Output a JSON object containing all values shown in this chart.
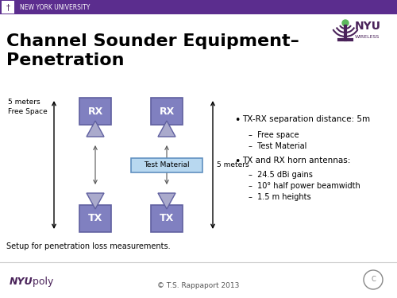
{
  "title_line1": "Channel Sounder Equipment–",
  "title_line2": "Penetration",
  "header_bg": "#5b2d8e",
  "header_text": "NEW YORK UNIVERSITY",
  "slide_bg": "#ffffff",
  "box_color": "#8080c0",
  "box_edge_color": "#6060a0",
  "box_text_color": "white",
  "tri_color": "#aaaacc",
  "tri_edge_color": "#6060a0",
  "test_material_bg": "#b8d8f0",
  "test_material_border": "#6090c0",
  "bullet_title1": "TX-RX separation distance: 5m",
  "sub1_1": "Free space",
  "sub1_2": "Test Material",
  "bullet_title2": "TX and RX horn antennas:",
  "sub2_1": "24.5 dBi gains",
  "sub2_2": "10° half power beamwidth",
  "sub2_3": "1.5 m heights",
  "label_left1": "5 meters",
  "label_left2": "Free Space",
  "label_right": "5 meters",
  "caption": "Setup for penetration loss measurements.",
  "footer_copyright": "© T.S. Rappaport 2013",
  "nyu_purple": "#4a235a"
}
